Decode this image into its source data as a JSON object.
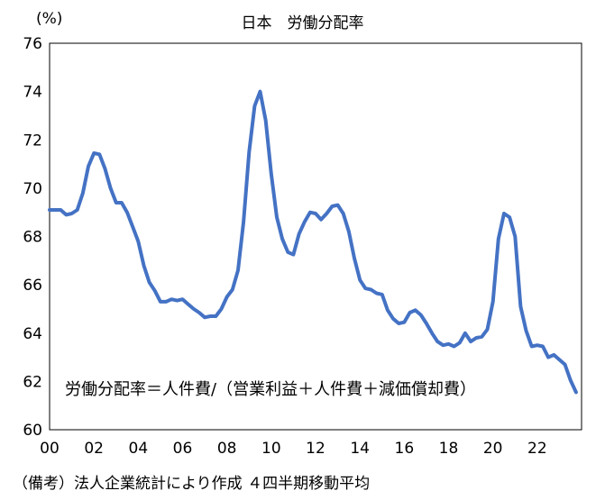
{
  "chart_data": {
    "type": "line",
    "title": "日本　労働分配率",
    "ylabel": "(%)",
    "xlabel": "",
    "xlim": [
      2000,
      2024
    ],
    "ylim": [
      60,
      76
    ],
    "x_ticks": [
      "00",
      "02",
      "04",
      "06",
      "08",
      "10",
      "12",
      "14",
      "16",
      "18",
      "20",
      "22"
    ],
    "y_ticks": [
      60,
      62,
      64,
      66,
      68,
      70,
      72,
      74,
      76
    ],
    "grid": false,
    "legend": "none",
    "annotation": "労働分配率＝人件費/（営業利益＋人件費＋減価償却費）",
    "note": "（備考）法人企業統計により作成 ４四半期移動平均",
    "series": [
      {
        "color": "#4472c4",
        "points": [
          [
            2000.0,
            69.1
          ],
          [
            2000.25,
            69.1
          ],
          [
            2000.5,
            69.1
          ],
          [
            2000.75,
            68.9
          ],
          [
            2001.0,
            68.95
          ],
          [
            2001.25,
            69.1
          ],
          [
            2001.5,
            69.8
          ],
          [
            2001.75,
            70.9
          ],
          [
            2002.0,
            71.45
          ],
          [
            2002.25,
            71.4
          ],
          [
            2002.5,
            70.8
          ],
          [
            2002.75,
            70.0
          ],
          [
            2003.0,
            69.4
          ],
          [
            2003.25,
            69.4
          ],
          [
            2003.5,
            69.0
          ],
          [
            2003.75,
            68.4
          ],
          [
            2004.0,
            67.8
          ],
          [
            2004.25,
            66.8
          ],
          [
            2004.5,
            66.1
          ],
          [
            2004.75,
            65.75
          ],
          [
            2005.0,
            65.3
          ],
          [
            2005.25,
            65.3
          ],
          [
            2005.5,
            65.4
          ],
          [
            2005.75,
            65.35
          ],
          [
            2006.0,
            65.4
          ],
          [
            2006.25,
            65.2
          ],
          [
            2006.5,
            65.0
          ],
          [
            2006.75,
            64.85
          ],
          [
            2007.0,
            64.65
          ],
          [
            2007.25,
            64.7
          ],
          [
            2007.5,
            64.7
          ],
          [
            2007.75,
            65.0
          ],
          [
            2008.0,
            65.5
          ],
          [
            2008.25,
            65.8
          ],
          [
            2008.5,
            66.6
          ],
          [
            2008.75,
            68.6
          ],
          [
            2009.0,
            71.5
          ],
          [
            2009.25,
            73.4
          ],
          [
            2009.5,
            74.0
          ],
          [
            2009.75,
            72.8
          ],
          [
            2010.0,
            70.6
          ],
          [
            2010.25,
            68.8
          ],
          [
            2010.5,
            67.9
          ],
          [
            2010.75,
            67.35
          ],
          [
            2011.0,
            67.25
          ],
          [
            2011.25,
            68.1
          ],
          [
            2011.5,
            68.6
          ],
          [
            2011.75,
            69.0
          ],
          [
            2012.0,
            68.95
          ],
          [
            2012.25,
            68.7
          ],
          [
            2012.5,
            68.95
          ],
          [
            2012.75,
            69.25
          ],
          [
            2013.0,
            69.3
          ],
          [
            2013.25,
            68.95
          ],
          [
            2013.5,
            68.2
          ],
          [
            2013.75,
            67.1
          ],
          [
            2014.0,
            66.2
          ],
          [
            2014.25,
            65.85
          ],
          [
            2014.5,
            65.8
          ],
          [
            2014.75,
            65.65
          ],
          [
            2015.0,
            65.6
          ],
          [
            2015.25,
            64.95
          ],
          [
            2015.5,
            64.6
          ],
          [
            2015.75,
            64.4
          ],
          [
            2016.0,
            64.45
          ],
          [
            2016.25,
            64.85
          ],
          [
            2016.5,
            64.95
          ],
          [
            2016.75,
            64.75
          ],
          [
            2017.0,
            64.4
          ],
          [
            2017.25,
            64.0
          ],
          [
            2017.5,
            63.65
          ],
          [
            2017.75,
            63.5
          ],
          [
            2018.0,
            63.55
          ],
          [
            2018.25,
            63.45
          ],
          [
            2018.5,
            63.6
          ],
          [
            2018.75,
            64.0
          ],
          [
            2019.0,
            63.65
          ],
          [
            2019.25,
            63.8
          ],
          [
            2019.5,
            63.85
          ],
          [
            2019.75,
            64.15
          ],
          [
            2020.0,
            65.3
          ],
          [
            2020.25,
            67.9
          ],
          [
            2020.5,
            68.95
          ],
          [
            2020.75,
            68.8
          ],
          [
            2021.0,
            68.0
          ],
          [
            2021.25,
            65.1
          ],
          [
            2021.5,
            64.1
          ],
          [
            2021.75,
            63.45
          ],
          [
            2022.0,
            63.5
          ],
          [
            2022.25,
            63.45
          ],
          [
            2022.5,
            63.0
          ],
          [
            2022.75,
            63.1
          ],
          [
            2023.0,
            62.9
          ],
          [
            2023.25,
            62.7
          ],
          [
            2023.5,
            62.05
          ],
          [
            2023.75,
            61.55
          ]
        ]
      }
    ]
  }
}
